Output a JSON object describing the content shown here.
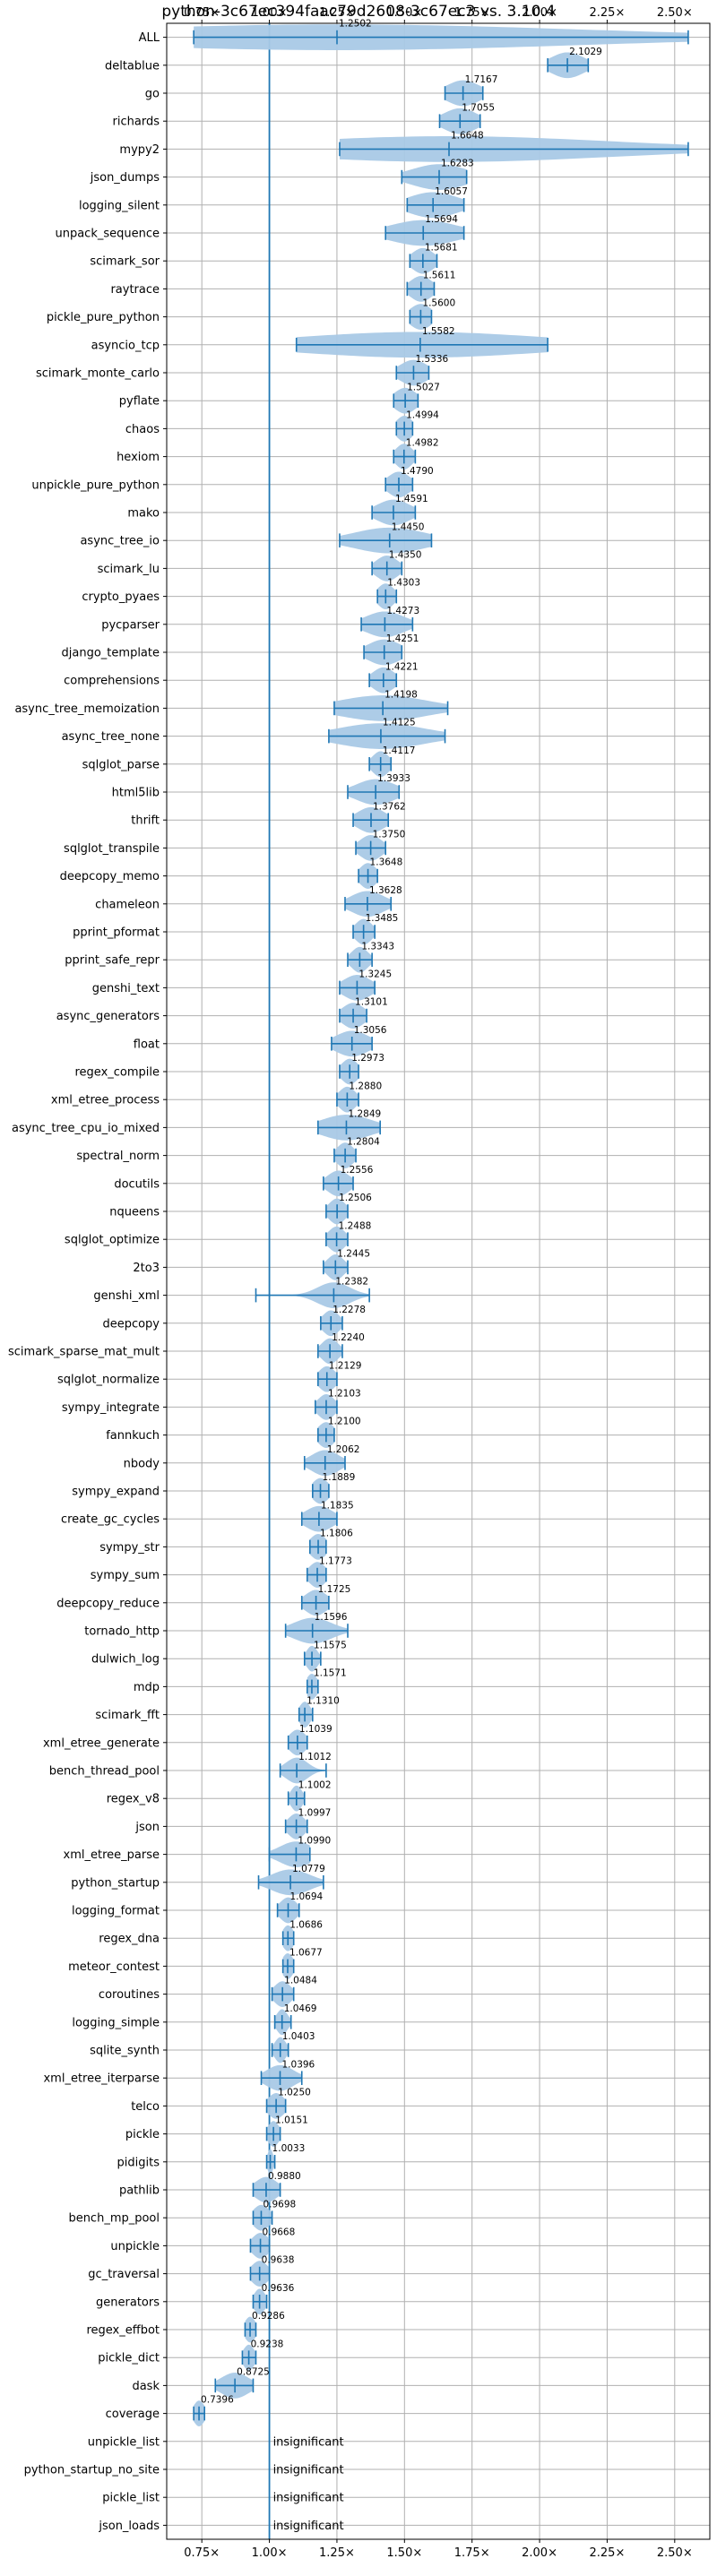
{
  "chart_data": {
    "type": "violin",
    "title": "python-3c67ec394faac79d2608-3c67ec3 vs. 3.10.4",
    "xlim": [
      0.62,
      2.63
    ],
    "x_ticks": [
      0.75,
      1.0,
      1.25,
      1.5,
      1.75,
      2.0,
      2.25,
      2.5
    ],
    "x_tick_labels": [
      "0.75×",
      "1.00×",
      "1.25×",
      "1.50×",
      "1.75×",
      "2.00×",
      "2.25×",
      "2.50×"
    ],
    "reference_line": 1.0,
    "grid": true,
    "colors": {
      "violin": "#a9c9e6",
      "line": "#1f77b4",
      "grid": "#b0b0b0",
      "reference": "#1f77b4"
    },
    "insignificant_text": "insignificant",
    "benchmarks": [
      {
        "name": "ALL",
        "value": "1.2502",
        "min": 0.72,
        "max": 2.55,
        "spread": 0.9
      },
      {
        "name": "deltablue",
        "value": "2.1029",
        "min": 2.03,
        "max": 2.18,
        "spread": 0.06
      },
      {
        "name": "go",
        "value": "1.7167",
        "min": 1.65,
        "max": 1.79,
        "spread": 0.06
      },
      {
        "name": "richards",
        "value": "1.7055",
        "min": 1.63,
        "max": 1.78,
        "spread": 0.06
      },
      {
        "name": "mypy2",
        "value": "1.6648",
        "min": 1.26,
        "max": 2.55,
        "spread": 0.6
      },
      {
        "name": "json_dumps",
        "value": "1.6283",
        "min": 1.49,
        "max": 1.73,
        "spread": 0.1
      },
      {
        "name": "logging_silent",
        "value": "1.6057",
        "min": 1.51,
        "max": 1.72,
        "spread": 0.09
      },
      {
        "name": "unpack_sequence",
        "value": "1.5694",
        "min": 1.43,
        "max": 1.72,
        "spread": 0.12
      },
      {
        "name": "scimark_sor",
        "value": "1.5681",
        "min": 1.52,
        "max": 1.62,
        "spread": 0.04
      },
      {
        "name": "raytrace",
        "value": "1.5611",
        "min": 1.51,
        "max": 1.61,
        "spread": 0.04
      },
      {
        "name": "pickle_pure_python",
        "value": "1.5600",
        "min": 1.52,
        "max": 1.6,
        "spread": 0.04
      },
      {
        "name": "asyncio_tcp",
        "value": "1.5582",
        "min": 1.1,
        "max": 2.03,
        "spread": 0.45
      },
      {
        "name": "scimark_monte_carlo",
        "value": "1.5336",
        "min": 1.47,
        "max": 1.59,
        "spread": 0.05
      },
      {
        "name": "pyflate",
        "value": "1.5027",
        "min": 1.46,
        "max": 1.55,
        "spread": 0.04
      },
      {
        "name": "chaos",
        "value": "1.4994",
        "min": 1.47,
        "max": 1.53,
        "spread": 0.03
      },
      {
        "name": "hexiom",
        "value": "1.4982",
        "min": 1.46,
        "max": 1.54,
        "spread": 0.03
      },
      {
        "name": "unpickle_pure_python",
        "value": "1.4790",
        "min": 1.43,
        "max": 1.53,
        "spread": 0.04
      },
      {
        "name": "mako",
        "value": "1.4591",
        "min": 1.38,
        "max": 1.54,
        "spread": 0.06
      },
      {
        "name": "async_tree_io",
        "value": "1.4450",
        "min": 1.26,
        "max": 1.6,
        "spread": 0.13
      },
      {
        "name": "scimark_lu",
        "value": "1.4350",
        "min": 1.38,
        "max": 1.49,
        "spread": 0.04
      },
      {
        "name": "crypto_pyaes",
        "value": "1.4303",
        "min": 1.4,
        "max": 1.47,
        "spread": 0.03
      },
      {
        "name": "pycparser",
        "value": "1.4273",
        "min": 1.34,
        "max": 1.53,
        "spread": 0.07
      },
      {
        "name": "django_template",
        "value": "1.4251",
        "min": 1.35,
        "max": 1.49,
        "spread": 0.06
      },
      {
        "name": "comprehensions",
        "value": "1.4221",
        "min": 1.37,
        "max": 1.47,
        "spread": 0.04
      },
      {
        "name": "async_tree_memoization",
        "value": "1.4198",
        "min": 1.24,
        "max": 1.66,
        "spread": 0.16
      },
      {
        "name": "async_tree_none",
        "value": "1.4125",
        "min": 1.22,
        "max": 1.65,
        "spread": 0.16
      },
      {
        "name": "sqlglot_parse",
        "value": "1.4117",
        "min": 1.37,
        "max": 1.45,
        "spread": 0.03
      },
      {
        "name": "html5lib",
        "value": "1.3933",
        "min": 1.29,
        "max": 1.48,
        "spread": 0.07
      },
      {
        "name": "thrift",
        "value": "1.3762",
        "min": 1.31,
        "max": 1.44,
        "spread": 0.05
      },
      {
        "name": "sqlglot_transpile",
        "value": "1.3750",
        "min": 1.32,
        "max": 1.43,
        "spread": 0.04
      },
      {
        "name": "deepcopy_memo",
        "value": "1.3648",
        "min": 1.33,
        "max": 1.4,
        "spread": 0.03
      },
      {
        "name": "chameleon",
        "value": "1.3628",
        "min": 1.28,
        "max": 1.45,
        "spread": 0.06
      },
      {
        "name": "pprint_pformat",
        "value": "1.3485",
        "min": 1.31,
        "max": 1.39,
        "spread": 0.03
      },
      {
        "name": "pprint_safe_repr",
        "value": "1.3343",
        "min": 1.29,
        "max": 1.38,
        "spread": 0.03
      },
      {
        "name": "genshi_text",
        "value": "1.3245",
        "min": 1.26,
        "max": 1.39,
        "spread": 0.05
      },
      {
        "name": "async_generators",
        "value": "1.3101",
        "min": 1.26,
        "max": 1.36,
        "spread": 0.04
      },
      {
        "name": "float",
        "value": "1.3056",
        "min": 1.23,
        "max": 1.38,
        "spread": 0.06
      },
      {
        "name": "regex_compile",
        "value": "1.2973",
        "min": 1.26,
        "max": 1.33,
        "spread": 0.03
      },
      {
        "name": "xml_etree_process",
        "value": "1.2880",
        "min": 1.25,
        "max": 1.33,
        "spread": 0.03
      },
      {
        "name": "async_tree_cpu_io_mixed",
        "value": "1.2849",
        "min": 1.18,
        "max": 1.41,
        "spread": 0.09
      },
      {
        "name": "spectral_norm",
        "value": "1.2804",
        "min": 1.24,
        "max": 1.32,
        "spread": 0.03
      },
      {
        "name": "docutils",
        "value": "1.2556",
        "min": 1.2,
        "max": 1.31,
        "spread": 0.04
      },
      {
        "name": "nqueens",
        "value": "1.2506",
        "min": 1.21,
        "max": 1.29,
        "spread": 0.03
      },
      {
        "name": "sqlglot_optimize",
        "value": "1.2488",
        "min": 1.21,
        "max": 1.29,
        "spread": 0.03
      },
      {
        "name": "2to3",
        "value": "1.2445",
        "min": 1.2,
        "max": 1.29,
        "spread": 0.03
      },
      {
        "name": "genshi_xml",
        "value": "1.2382",
        "min": 0.95,
        "max": 1.37,
        "spread": 0.06
      },
      {
        "name": "deepcopy",
        "value": "1.2278",
        "min": 1.19,
        "max": 1.27,
        "spread": 0.03
      },
      {
        "name": "scimark_sparse_mat_mult",
        "value": "1.2240",
        "min": 1.18,
        "max": 1.27,
        "spread": 0.03
      },
      {
        "name": "sqlglot_normalize",
        "value": "1.2129",
        "min": 1.18,
        "max": 1.25,
        "spread": 0.03
      },
      {
        "name": "sympy_integrate",
        "value": "1.2103",
        "min": 1.17,
        "max": 1.25,
        "spread": 0.03
      },
      {
        "name": "fannkuch",
        "value": "1.2100",
        "min": 1.18,
        "max": 1.24,
        "spread": 0.03
      },
      {
        "name": "nbody",
        "value": "1.2062",
        "min": 1.13,
        "max": 1.28,
        "spread": 0.05
      },
      {
        "name": "sympy_expand",
        "value": "1.1889",
        "min": 1.16,
        "max": 1.22,
        "spread": 0.03
      },
      {
        "name": "create_gc_cycles",
        "value": "1.1835",
        "min": 1.12,
        "max": 1.25,
        "spread": 0.05
      },
      {
        "name": "sympy_str",
        "value": "1.1806",
        "min": 1.15,
        "max": 1.21,
        "spread": 0.03
      },
      {
        "name": "sympy_sum",
        "value": "1.1773",
        "min": 1.14,
        "max": 1.21,
        "spread": 0.03
      },
      {
        "name": "deepcopy_reduce",
        "value": "1.1725",
        "min": 1.12,
        "max": 1.22,
        "spread": 0.04
      },
      {
        "name": "tornado_http",
        "value": "1.1596",
        "min": 1.06,
        "max": 1.29,
        "spread": 0.07
      },
      {
        "name": "dulwich_log",
        "value": "1.1575",
        "min": 1.13,
        "max": 1.19,
        "spread": 0.02
      },
      {
        "name": "mdp",
        "value": "1.1571",
        "min": 1.14,
        "max": 1.18,
        "spread": 0.02
      },
      {
        "name": "scimark_fft",
        "value": "1.1310",
        "min": 1.11,
        "max": 1.16,
        "spread": 0.02
      },
      {
        "name": "xml_etree_generate",
        "value": "1.1039",
        "min": 1.07,
        "max": 1.14,
        "spread": 0.03
      },
      {
        "name": "bench_thread_pool",
        "value": "1.1012",
        "min": 1.04,
        "max": 1.21,
        "spread": 0.04
      },
      {
        "name": "regex_v8",
        "value": "1.1002",
        "min": 1.07,
        "max": 1.13,
        "spread": 0.02
      },
      {
        "name": "json",
        "value": "1.0997",
        "min": 1.06,
        "max": 1.14,
        "spread": 0.03
      },
      {
        "name": "xml_etree_parse",
        "value": "1.0990",
        "min": 1.0,
        "max": 1.15,
        "spread": 0.06
      },
      {
        "name": "python_startup",
        "value": "1.0779",
        "min": 0.96,
        "max": 1.2,
        "spread": 0.07
      },
      {
        "name": "logging_format",
        "value": "1.0694",
        "min": 1.03,
        "max": 1.11,
        "spread": 0.03
      },
      {
        "name": "regex_dna",
        "value": "1.0686",
        "min": 1.05,
        "max": 1.09,
        "spread": 0.02
      },
      {
        "name": "meteor_contest",
        "value": "1.0677",
        "min": 1.05,
        "max": 1.09,
        "spread": 0.02
      },
      {
        "name": "coroutines",
        "value": "1.0484",
        "min": 1.01,
        "max": 1.09,
        "spread": 0.03
      },
      {
        "name": "logging_simple",
        "value": "1.0469",
        "min": 1.02,
        "max": 1.08,
        "spread": 0.02
      },
      {
        "name": "sqlite_synth",
        "value": "1.0403",
        "min": 1.01,
        "max": 1.07,
        "spread": 0.02
      },
      {
        "name": "xml_etree_iterparse",
        "value": "1.0396",
        "min": 0.97,
        "max": 1.12,
        "spread": 0.05
      },
      {
        "name": "telco",
        "value": "1.0250",
        "min": 0.99,
        "max": 1.06,
        "spread": 0.03
      },
      {
        "name": "pickle",
        "value": "1.0151",
        "min": 0.99,
        "max": 1.04,
        "spread": 0.02
      },
      {
        "name": "pidigits",
        "value": "1.0033",
        "min": 0.99,
        "max": 1.02,
        "spread": 0.01
      },
      {
        "name": "pathlib",
        "value": "0.9880",
        "min": 0.94,
        "max": 1.04,
        "spread": 0.04
      },
      {
        "name": "bench_mp_pool",
        "value": "0.9698",
        "min": 0.94,
        "max": 1.01,
        "spread": 0.03
      },
      {
        "name": "unpickle",
        "value": "0.9668",
        "min": 0.93,
        "max": 1.0,
        "spread": 0.03
      },
      {
        "name": "gc_traversal",
        "value": "0.9638",
        "min": 0.93,
        "max": 1.0,
        "spread": 0.03
      },
      {
        "name": "generators",
        "value": "0.9636",
        "min": 0.94,
        "max": 0.99,
        "spread": 0.02
      },
      {
        "name": "regex_effbot",
        "value": "0.9286",
        "min": 0.91,
        "max": 0.95,
        "spread": 0.02
      },
      {
        "name": "pickle_dict",
        "value": "0.9238",
        "min": 0.9,
        "max": 0.95,
        "spread": 0.02
      },
      {
        "name": "dask",
        "value": "0.8725",
        "min": 0.8,
        "max": 0.94,
        "spread": 0.05
      },
      {
        "name": "coverage",
        "value": "0.7396",
        "min": 0.72,
        "max": 0.76,
        "spread": 0.02
      },
      {
        "name": "unpickle_list",
        "insignificant": true
      },
      {
        "name": "python_startup_no_site",
        "insignificant": true
      },
      {
        "name": "pickle_list",
        "insignificant": true
      },
      {
        "name": "json_loads",
        "insignificant": true
      }
    ]
  }
}
